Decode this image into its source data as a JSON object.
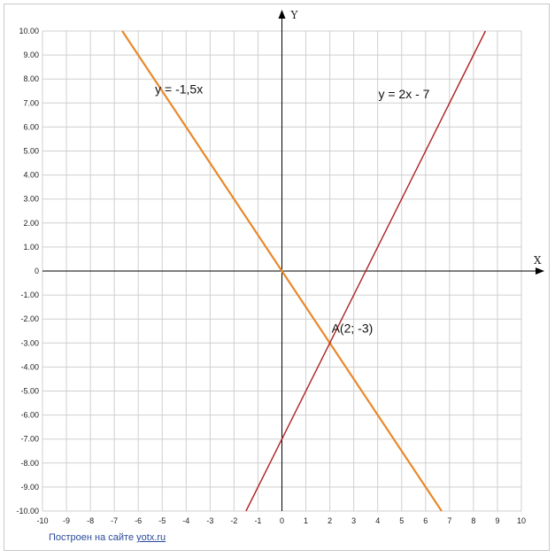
{
  "chart_data": {
    "type": "line",
    "x_axis_label": "X",
    "y_axis_label": "Y",
    "xlim": [
      -10,
      10
    ],
    "ylim": [
      -10,
      10
    ],
    "grid": true,
    "x_tick_labels": [
      "-10",
      "-9",
      "-8",
      "-7",
      "-6",
      "-5",
      "-4",
      "-3",
      "-2",
      "-1",
      "0",
      "1",
      "2",
      "3",
      "4",
      "5",
      "6",
      "7",
      "8",
      "9",
      "10"
    ],
    "y_tick_labels": [
      "10.00",
      "9.00",
      "8.00",
      "7.00",
      "6.00",
      "5.00",
      "4.00",
      "3.00",
      "2.00",
      "1.00",
      "0",
      "-1.00",
      "-2.00",
      "-3.00",
      "-4.00",
      "-5.00",
      "-6.00",
      "-7.00",
      "-8.00",
      "-9.00",
      "-10.00"
    ],
    "series": [
      {
        "name": "y = -1,5x",
        "slope": -1.5,
        "intercept": 0,
        "color": "#e8892a",
        "points": [
          [
            -6.67,
            10
          ],
          [
            6.67,
            -10
          ]
        ]
      },
      {
        "name": "y = 2x - 7",
        "slope": 2,
        "intercept": -7,
        "color": "#b02020",
        "points": [
          [
            -1.5,
            -10
          ],
          [
            8.5,
            10
          ]
        ]
      }
    ],
    "annotations": [
      {
        "text": "A(2; -3)",
        "x": 2,
        "y": -3
      }
    ]
  },
  "footer": {
    "credit_prefix": "Построен на сайте ",
    "credit_link": "yotx.ru"
  }
}
